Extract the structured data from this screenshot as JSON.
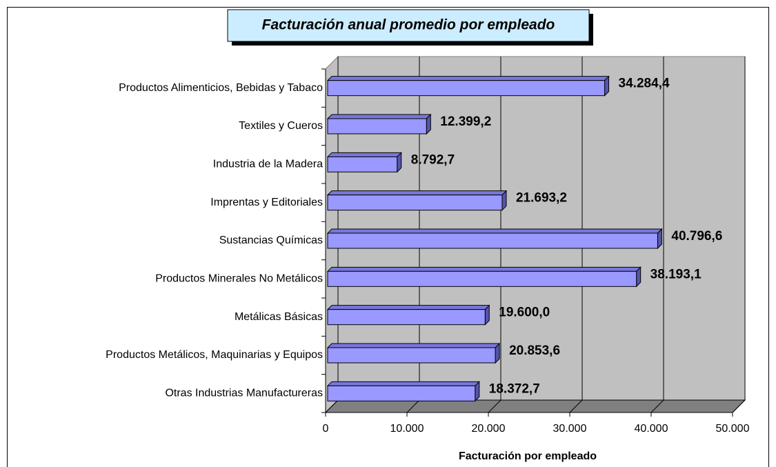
{
  "chart_data": {
    "type": "bar",
    "orientation": "horizontal",
    "title": "Facturación anual promedio por empleado",
    "x_label": "Facturación por empleado",
    "categories": [
      "Productos Alimenticios, Bebidas y Tabaco",
      "Textiles y Cueros",
      "Industria de la Madera",
      "Imprentas y Editoriales",
      "Sustancias Químicas",
      "Productos Minerales No Metálicos",
      "Metálicas Básicas",
      "Productos Metálicos, Maquinarias y Equipos",
      "Otras Industrias Manufactureras"
    ],
    "values": [
      34284.4,
      12399.2,
      8792.7,
      21693.2,
      40796.6,
      38193.1,
      19600.0,
      20853.6,
      18372.7
    ],
    "value_labels": [
      "34.284,4",
      "12.399,2",
      "8.792,7",
      "21.693,2",
      "40.796,6",
      "38.193,1",
      "19.600,0",
      "20.853,6",
      "18.372,7"
    ],
    "color": "#9999ff",
    "xlim": [
      0,
      50000
    ],
    "xticks": [
      0,
      {
        "value": 10000,
        "label": "10.000"
      },
      {
        "value": 20000,
        "label": "20.000"
      },
      {
        "value": 30000,
        "label": "30.000"
      },
      {
        "value": 40000,
        "label": "40.000"
      },
      {
        "value": 50000,
        "label": "50.000"
      }
    ],
    "grid": true
  }
}
